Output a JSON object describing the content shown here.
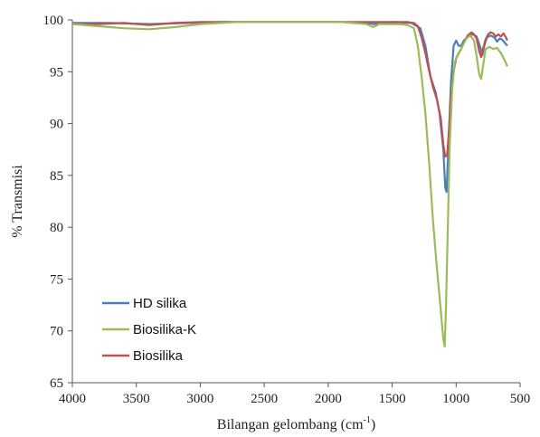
{
  "chart_data": {
    "type": "line",
    "xlabel": "Bilangan gelombang (cm",
    "xlabel_sup": "-1",
    "xlabel_close": ")",
    "ylabel": "% Transmisi",
    "xlim": [
      4000,
      500
    ],
    "ylim": [
      65,
      100
    ],
    "x_reversed": true,
    "grid": false,
    "legend_position": "bottom-left",
    "x_ticks": [
      4000,
      3500,
      3000,
      2500,
      2000,
      1500,
      1000,
      500
    ],
    "y_ticks": [
      65,
      70,
      75,
      80,
      85,
      90,
      95,
      100
    ],
    "series": [
      {
        "name": "HD silika",
        "color": "#4a7ebb",
        "points": [
          [
            4000,
            99.7
          ],
          [
            3700,
            99.7
          ],
          [
            3400,
            99.6
          ],
          [
            3100,
            99.7
          ],
          [
            2800,
            99.8
          ],
          [
            2500,
            99.8
          ],
          [
            2200,
            99.8
          ],
          [
            1900,
            99.8
          ],
          [
            1700,
            99.7
          ],
          [
            1650,
            99.6
          ],
          [
            1500,
            99.8
          ],
          [
            1350,
            99.7
          ],
          [
            1280,
            99.2
          ],
          [
            1240,
            97.5
          ],
          [
            1200,
            94.5
          ],
          [
            1160,
            93
          ],
          [
            1130,
            91
          ],
          [
            1100,
            87.5
          ],
          [
            1085,
            83.8
          ],
          [
            1075,
            83.4
          ],
          [
            1060,
            88
          ],
          [
            1040,
            94
          ],
          [
            1020,
            97.5
          ],
          [
            1000,
            98
          ],
          [
            980,
            97.5
          ],
          [
            960,
            97.5
          ],
          [
            940,
            98
          ],
          [
            900,
            98.5
          ],
          [
            870,
            98.6
          ],
          [
            840,
            98.4
          ],
          [
            810,
            97.3
          ],
          [
            795,
            96.6
          ],
          [
            780,
            97.5
          ],
          [
            760,
            98.3
          ],
          [
            730,
            98.5
          ],
          [
            700,
            98.3
          ],
          [
            680,
            97.9
          ],
          [
            660,
            98.2
          ],
          [
            640,
            98.1
          ],
          [
            620,
            97.8
          ],
          [
            600,
            97.5
          ]
        ]
      },
      {
        "name": "Biosilika-K",
        "color": "#9bbb59",
        "points": [
          [
            4000,
            99.6
          ],
          [
            3800,
            99.4
          ],
          [
            3600,
            99.2
          ],
          [
            3400,
            99.1
          ],
          [
            3200,
            99.3
          ],
          [
            3000,
            99.6
          ],
          [
            2700,
            99.8
          ],
          [
            2400,
            99.8
          ],
          [
            2100,
            99.8
          ],
          [
            1900,
            99.8
          ],
          [
            1700,
            99.6
          ],
          [
            1650,
            99.3
          ],
          [
            1600,
            99.6
          ],
          [
            1450,
            99.6
          ],
          [
            1380,
            99.5
          ],
          [
            1330,
            99.2
          ],
          [
            1300,
            97.5
          ],
          [
            1270,
            94.5
          ],
          [
            1240,
            91
          ],
          [
            1210,
            86
          ],
          [
            1180,
            80.5
          ],
          [
            1150,
            76
          ],
          [
            1120,
            72
          ],
          [
            1100,
            69.2
          ],
          [
            1090,
            68.5
          ],
          [
            1080,
            72
          ],
          [
            1065,
            80
          ],
          [
            1050,
            88
          ],
          [
            1030,
            93.5
          ],
          [
            1010,
            96
          ],
          [
            990,
            96.5
          ],
          [
            970,
            97
          ],
          [
            950,
            97.5
          ],
          [
            920,
            98.2
          ],
          [
            890,
            98.5
          ],
          [
            860,
            98
          ],
          [
            840,
            96.5
          ],
          [
            820,
            94.8
          ],
          [
            805,
            94.3
          ],
          [
            790,
            95.5
          ],
          [
            770,
            97.2
          ],
          [
            740,
            97.4
          ],
          [
            710,
            97.2
          ],
          [
            680,
            97.3
          ],
          [
            650,
            96.8
          ],
          [
            620,
            96.1
          ],
          [
            600,
            95.5
          ]
        ]
      },
      {
        "name": "Biosilika",
        "color": "#c0504d",
        "points": [
          [
            4000,
            99.6
          ],
          [
            3800,
            99.6
          ],
          [
            3600,
            99.7
          ],
          [
            3400,
            99.5
          ],
          [
            3200,
            99.7
          ],
          [
            3000,
            99.8
          ],
          [
            2700,
            99.8
          ],
          [
            2400,
            99.8
          ],
          [
            2100,
            99.8
          ],
          [
            1900,
            99.8
          ],
          [
            1700,
            99.8
          ],
          [
            1500,
            99.8
          ],
          [
            1380,
            99.8
          ],
          [
            1330,
            99.7
          ],
          [
            1300,
            99.4
          ],
          [
            1270,
            98.3
          ],
          [
            1240,
            96.8
          ],
          [
            1210,
            95
          ],
          [
            1180,
            93.5
          ],
          [
            1150,
            92.3
          ],
          [
            1120,
            90.5
          ],
          [
            1100,
            88
          ],
          [
            1085,
            86.8
          ],
          [
            1070,
            87
          ],
          [
            1055,
            89.5
          ],
          [
            1040,
            92.5
          ],
          [
            1020,
            95
          ],
          [
            1000,
            96.3
          ],
          [
            980,
            96.8
          ],
          [
            960,
            97.2
          ],
          [
            940,
            97.8
          ],
          [
            910,
            98.5
          ],
          [
            880,
            98.8
          ],
          [
            860,
            98.6
          ],
          [
            840,
            98.2
          ],
          [
            820,
            97
          ],
          [
            805,
            96.4
          ],
          [
            790,
            97.2
          ],
          [
            770,
            98.1
          ],
          [
            750,
            98.6
          ],
          [
            730,
            98.8
          ],
          [
            710,
            98.7
          ],
          [
            690,
            98.4
          ],
          [
            670,
            98.6
          ],
          [
            650,
            98.4
          ],
          [
            630,
            98.7
          ],
          [
            610,
            98.3
          ],
          [
            600,
            98
          ]
        ]
      }
    ]
  }
}
